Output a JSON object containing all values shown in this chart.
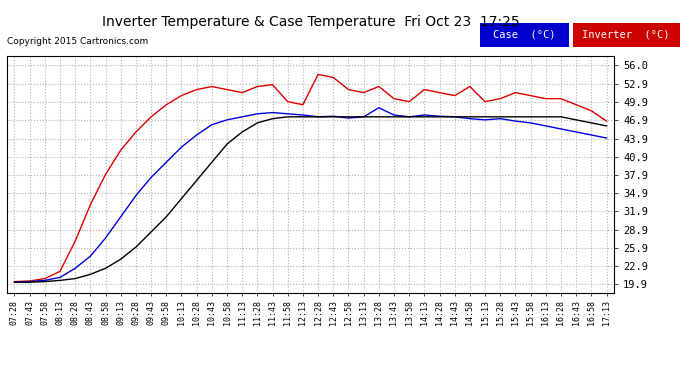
{
  "title": "Inverter Temperature & Case Temperature  Fri Oct 23  17:25",
  "copyright": "Copyright 2015 Cartronics.com",
  "background_color": "#ffffff",
  "plot_bg_color": "#ffffff",
  "grid_color": "#b0b0b0",
  "case_color": "#0000dd",
  "inverter_color": "#dd0000",
  "black_color": "#000000",
  "legend_labels": [
    "Case  (°C)",
    "Inverter  (°C)"
  ],
  "legend_bg_case": "#0000cc",
  "legend_bg_inv": "#cc0000",
  "yticks": [
    19.9,
    22.9,
    25.9,
    28.9,
    31.9,
    34.9,
    37.9,
    40.9,
    43.9,
    46.9,
    49.9,
    52.9,
    56.0
  ],
  "ymin": 18.5,
  "ymax": 57.5,
  "xtick_labels": [
    "07:28",
    "07:43",
    "07:58",
    "08:13",
    "08:28",
    "08:43",
    "08:58",
    "09:13",
    "09:28",
    "09:43",
    "09:58",
    "10:13",
    "10:28",
    "10:43",
    "10:58",
    "11:13",
    "11:28",
    "11:43",
    "11:58",
    "12:13",
    "12:28",
    "12:43",
    "12:58",
    "13:13",
    "13:28",
    "13:43",
    "13:58",
    "14:13",
    "14:28",
    "14:43",
    "14:58",
    "15:13",
    "15:28",
    "15:43",
    "15:58",
    "16:13",
    "16:28",
    "16:43",
    "16:58",
    "17:13"
  ],
  "case_temps": [
    20.2,
    20.3,
    20.5,
    21.0,
    22.5,
    24.5,
    27.5,
    31.0,
    34.5,
    37.5,
    40.0,
    42.5,
    44.5,
    46.2,
    47.0,
    47.5,
    48.0,
    48.2,
    48.0,
    47.8,
    47.5,
    47.6,
    47.3,
    47.5,
    49.0,
    47.8,
    47.5,
    47.8,
    47.6,
    47.5,
    47.2,
    47.0,
    47.2,
    46.8,
    46.5,
    46.0,
    45.5,
    45.0,
    44.5,
    44.0
  ],
  "inv_temps": [
    20.3,
    20.4,
    20.8,
    22.0,
    27.0,
    33.0,
    38.0,
    42.0,
    45.0,
    47.5,
    49.5,
    51.0,
    52.0,
    52.5,
    52.0,
    51.5,
    52.5,
    52.8,
    50.0,
    49.5,
    54.5,
    54.0,
    52.0,
    51.5,
    52.5,
    50.5,
    50.0,
    52.0,
    51.5,
    51.0,
    52.5,
    50.0,
    50.5,
    51.5,
    51.0,
    50.5,
    50.5,
    49.5,
    48.5,
    46.8
  ],
  "black_temps": [
    20.2,
    20.2,
    20.3,
    20.5,
    20.8,
    21.5,
    22.5,
    24.0,
    26.0,
    28.5,
    31.0,
    34.0,
    37.0,
    40.0,
    43.0,
    45.0,
    46.5,
    47.2,
    47.5,
    47.5,
    47.5,
    47.5,
    47.5,
    47.5,
    47.5,
    47.5,
    47.5,
    47.5,
    47.5,
    47.5,
    47.5,
    47.5,
    47.5,
    47.5,
    47.5,
    47.5,
    47.5,
    47.0,
    46.5,
    46.0
  ]
}
